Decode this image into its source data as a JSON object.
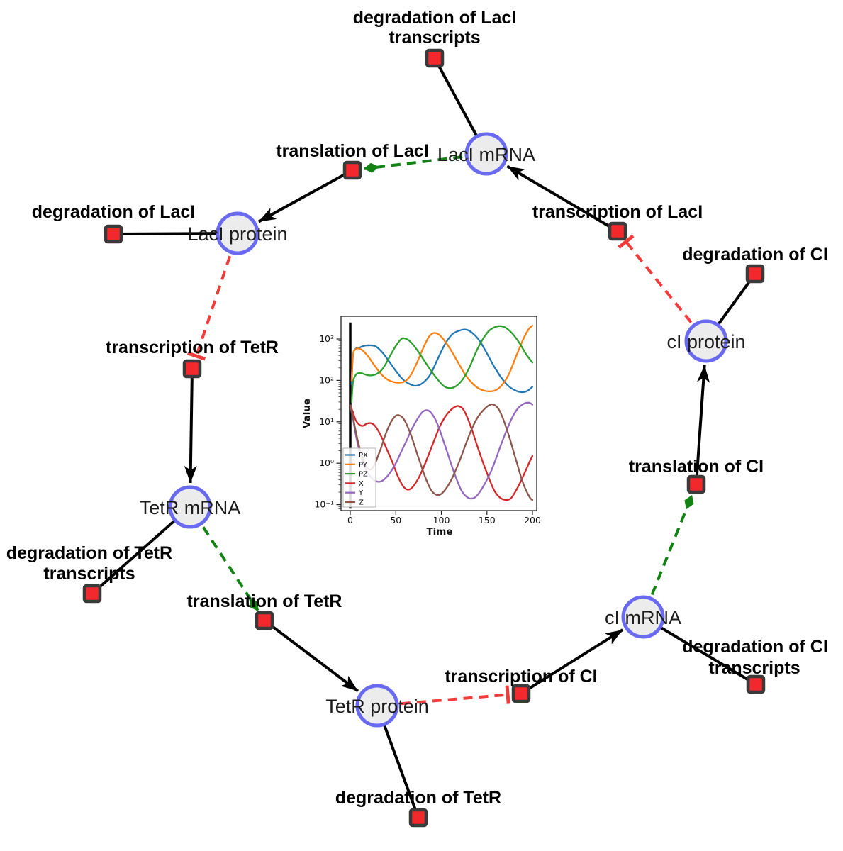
{
  "diagram": {
    "description": "repressilator reaction network",
    "nodes": {
      "laci_mrna": {
        "label": "LacI mRNA"
      },
      "laci_protein": {
        "label": "LacI protein"
      },
      "tetr_mrna": {
        "label": "TetR mRNA"
      },
      "tetr_protein": {
        "label": "TetR protein"
      },
      "ci_mrna": {
        "label": "cI mRNA"
      },
      "ci_protein": {
        "label": "cI protein"
      }
    },
    "reactions": {
      "deg_laci_tx": {
        "line1": "degradation of LacI",
        "line2": "transcripts"
      },
      "transl_laci": {
        "line1": "translation of LacI"
      },
      "deg_laci": {
        "line1": "degradation of LacI"
      },
      "tx_laci": {
        "line1": "transcription of LacI"
      },
      "deg_ci": {
        "line1": "degradation of CI"
      },
      "transl_ci": {
        "line1": "translation of CI"
      },
      "tx_tetr": {
        "line1": "transcription of TetR"
      },
      "deg_tetr_tx": {
        "line1": "degradation of TetR",
        "line2": "transcripts"
      },
      "transl_tetr": {
        "line1": "translation of TetR"
      },
      "deg_tetr": {
        "line1": "degradation of TetR"
      },
      "tx_ci": {
        "line1": "transcription of CI"
      },
      "deg_ci_tx": {
        "line1": "degradation of CI",
        "line2": "transcripts"
      }
    },
    "colors": {
      "species_fill": "#ececec",
      "species_border": "#6a6af0",
      "reaction_fill": "#f3282c",
      "reaction_border": "#3a3a3a",
      "edge_reaction": "#000000",
      "edge_modifier_dashed": "#128212",
      "edge_inhibition_dashed": "#f23b3b"
    }
  },
  "chart_data": {
    "type": "line",
    "title": "",
    "xlabel": "Time",
    "ylabel": "Value",
    "y_scale": "log",
    "xlim": [
      -10,
      206
    ],
    "ylim": [
      0.073,
      3500
    ],
    "x_ticks": [
      0,
      50,
      100,
      150,
      200
    ],
    "x_tick_labels": [
      "0",
      "50",
      "100",
      "150",
      "200"
    ],
    "y_ticks_exp": [
      3,
      2,
      1,
      0,
      -1
    ],
    "y_tick_labels": [
      "10³",
      "10²",
      "10¹",
      "10⁰",
      "10⁻¹"
    ],
    "grid": false,
    "legend_position": "lower left",
    "annotations": [
      {
        "type": "vline",
        "x": 0,
        "y_from": 0.08,
        "y_to": 2500,
        "color": "#000000"
      }
    ],
    "series": [
      {
        "name": "PX",
        "color": "#1f77b4",
        "points": [
          [
            1.5,
            80
          ],
          [
            3,
            400
          ],
          [
            6,
            580
          ],
          [
            10,
            620
          ],
          [
            16,
            690
          ],
          [
            22,
            700
          ],
          [
            28,
            660
          ],
          [
            35,
            480
          ],
          [
            42,
            300
          ],
          [
            50,
            170
          ],
          [
            58,
            105
          ],
          [
            65,
            82
          ],
          [
            72,
            74
          ],
          [
            80,
            88
          ],
          [
            88,
            140
          ],
          [
            96,
            330
          ],
          [
            104,
            750
          ],
          [
            112,
            1300
          ],
          [
            120,
            1600
          ],
          [
            127,
            1680
          ],
          [
            134,
            1400
          ],
          [
            142,
            900
          ],
          [
            150,
            450
          ],
          [
            158,
            215
          ],
          [
            166,
            115
          ],
          [
            174,
            72
          ],
          [
            182,
            56
          ],
          [
            188,
            52
          ],
          [
            194,
            55
          ],
          [
            200,
            70
          ]
        ]
      },
      {
        "name": "PY",
        "color": "#ff7f0e",
        "points": [
          [
            1.5,
            100
          ],
          [
            3,
            420
          ],
          [
            6,
            560
          ],
          [
            9,
            590
          ],
          [
            14,
            520
          ],
          [
            20,
            370
          ],
          [
            26,
            240
          ],
          [
            33,
            150
          ],
          [
            40,
            108
          ],
          [
            47,
            92
          ],
          [
            54,
            88
          ],
          [
            60,
            95
          ],
          [
            66,
            130
          ],
          [
            73,
            260
          ],
          [
            80,
            600
          ],
          [
            86,
            1100
          ],
          [
            91,
            1380
          ],
          [
            96,
            1330
          ],
          [
            102,
            1000
          ],
          [
            110,
            560
          ],
          [
            118,
            280
          ],
          [
            126,
            140
          ],
          [
            134,
            85
          ],
          [
            142,
            62
          ],
          [
            150,
            55
          ],
          [
            158,
            56
          ],
          [
            166,
            75
          ],
          [
            174,
            140
          ],
          [
            182,
            380
          ],
          [
            190,
            1000
          ],
          [
            196,
            1750
          ],
          [
            200,
            2100
          ]
        ]
      },
      {
        "name": "PZ",
        "color": "#2ca02c",
        "points": [
          [
            1.5,
            30
          ],
          [
            3,
            90
          ],
          [
            6,
            135
          ],
          [
            9,
            150
          ],
          [
            13,
            148
          ],
          [
            18,
            135
          ],
          [
            23,
            132
          ],
          [
            28,
            140
          ],
          [
            33,
            165
          ],
          [
            38,
            230
          ],
          [
            44,
            400
          ],
          [
            50,
            680
          ],
          [
            56,
            1000
          ],
          [
            60,
            1030
          ],
          [
            65,
            900
          ],
          [
            72,
            600
          ],
          [
            80,
            330
          ],
          [
            88,
            180
          ],
          [
            96,
            105
          ],
          [
            103,
            72
          ],
          [
            110,
            65
          ],
          [
            117,
            75
          ],
          [
            124,
            110
          ],
          [
            131,
            210
          ],
          [
            138,
            480
          ],
          [
            145,
            950
          ],
          [
            152,
            1550
          ],
          [
            158,
            1900
          ],
          [
            164,
            2050
          ],
          [
            170,
            1900
          ],
          [
            178,
            1350
          ],
          [
            186,
            780
          ],
          [
            193,
            430
          ],
          [
            200,
            270
          ]
        ]
      },
      {
        "name": "X",
        "color": "#d62728",
        "points": [
          [
            0,
            25
          ],
          [
            3,
            17
          ],
          [
            6,
            11
          ],
          [
            10,
            8.5
          ],
          [
            14,
            8
          ],
          [
            18,
            9
          ],
          [
            22,
            9.3
          ],
          [
            26,
            8.5
          ],
          [
            30,
            6.5
          ],
          [
            35,
            4
          ],
          [
            40,
            2.2
          ],
          [
            46,
            1.1
          ],
          [
            52,
            0.5
          ],
          [
            58,
            0.28
          ],
          [
            63,
            0.23
          ],
          [
            68,
            0.26
          ],
          [
            74,
            0.4
          ],
          [
            80,
            0.75
          ],
          [
            86,
            1.6
          ],
          [
            92,
            3.5
          ],
          [
            98,
            7.5
          ],
          [
            104,
            13
          ],
          [
            110,
            19
          ],
          [
            115,
            23
          ],
          [
            119,
            24
          ],
          [
            124,
            20
          ],
          [
            129,
            12
          ],
          [
            134,
            6
          ],
          [
            140,
            2.4
          ],
          [
            146,
            1
          ],
          [
            152,
            0.45
          ],
          [
            158,
            0.22
          ],
          [
            164,
            0.15
          ],
          [
            170,
            0.13
          ],
          [
            176,
            0.14
          ],
          [
            182,
            0.22
          ],
          [
            188,
            0.4
          ],
          [
            193,
            0.7
          ],
          [
            197,
            1.1
          ],
          [
            200,
            1.5
          ]
        ]
      },
      {
        "name": "Y",
        "color": "#9467bd",
        "points": [
          [
            0,
            25
          ],
          [
            3,
            12
          ],
          [
            6,
            5
          ],
          [
            10,
            2
          ],
          [
            14,
            1
          ],
          [
            18,
            0.65
          ],
          [
            23,
            0.45
          ],
          [
            28,
            0.37
          ],
          [
            33,
            0.36
          ],
          [
            38,
            0.42
          ],
          [
            44,
            0.6
          ],
          [
            50,
            1
          ],
          [
            56,
            1.9
          ],
          [
            62,
            3.6
          ],
          [
            68,
            7
          ],
          [
            74,
            12
          ],
          [
            79,
            17
          ],
          [
            83,
            19
          ],
          [
            87,
            18
          ],
          [
            92,
            13
          ],
          [
            97,
            7.5
          ],
          [
            102,
            3.6
          ],
          [
            107,
            1.7
          ],
          [
            112,
            0.8
          ],
          [
            117,
            0.4
          ],
          [
            122,
            0.22
          ],
          [
            127,
            0.16
          ],
          [
            132,
            0.14
          ],
          [
            137,
            0.15
          ],
          [
            142,
            0.2
          ],
          [
            148,
            0.33
          ],
          [
            154,
            0.6
          ],
          [
            160,
            1.3
          ],
          [
            166,
            3
          ],
          [
            172,
            6.5
          ],
          [
            178,
            13
          ],
          [
            184,
            21
          ],
          [
            190,
            27
          ],
          [
            195,
            29
          ],
          [
            198,
            28
          ],
          [
            200,
            26
          ]
        ]
      },
      {
        "name": "Z",
        "color": "#8c564b",
        "points": [
          [
            0,
            25
          ],
          [
            3,
            13
          ],
          [
            6,
            6
          ],
          [
            9,
            3
          ],
          [
            12,
            1.7
          ],
          [
            15,
            1.1
          ],
          [
            18,
            0.8
          ],
          [
            21,
            0.7
          ],
          [
            24,
            0.75
          ],
          [
            27,
            0.95
          ],
          [
            30,
            1.4
          ],
          [
            34,
            2.4
          ],
          [
            38,
            4.5
          ],
          [
            42,
            7.5
          ],
          [
            46,
            11
          ],
          [
            50,
            14
          ],
          [
            53,
            14.5
          ],
          [
            57,
            13
          ],
          [
            61,
            9.5
          ],
          [
            65,
            6
          ],
          [
            69,
            3.4
          ],
          [
            73,
            1.8
          ],
          [
            77,
            1
          ],
          [
            81,
            0.55
          ],
          [
            85,
            0.33
          ],
          [
            89,
            0.22
          ],
          [
            93,
            0.18
          ],
          [
            97,
            0.17
          ],
          [
            101,
            0.19
          ],
          [
            106,
            0.26
          ],
          [
            111,
            0.4
          ],
          [
            116,
            0.7
          ],
          [
            121,
            1.3
          ],
          [
            126,
            2.6
          ],
          [
            131,
            5
          ],
          [
            136,
            9
          ],
          [
            141,
            14
          ],
          [
            146,
            19
          ],
          [
            151,
            24
          ],
          [
            155,
            26.5
          ],
          [
            159,
            25
          ],
          [
            163,
            20
          ],
          [
            167,
            13
          ],
          [
            171,
            7.5
          ],
          [
            175,
            4
          ],
          [
            179,
            2
          ],
          [
            183,
            1
          ],
          [
            187,
            0.5
          ],
          [
            191,
            0.28
          ],
          [
            195,
            0.18
          ],
          [
            198,
            0.14
          ],
          [
            200,
            0.13
          ]
        ]
      }
    ]
  }
}
